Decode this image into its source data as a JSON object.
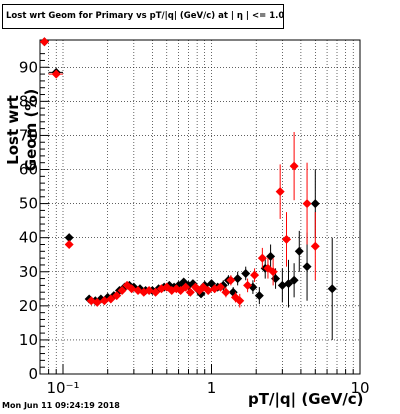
{
  "chart_data": {
    "type": "scatter",
    "title": "Lost wrt Geom for Primary vs pT/|q| (GeV/c) at | η | <= 1.0",
    "xlabel": "pT/|q| (GeV/c)",
    "ylabel": "Lost wrt Geom (%)",
    "footer": "Mon Jun 11 09:24:19 2018",
    "x_scale": "log",
    "xlim": [
      0.07,
      10
    ],
    "ylim": [
      0,
      98
    ],
    "grid": true,
    "x_tick_labels": [
      "10⁻¹",
      "1",
      "10"
    ],
    "y_ticks": [
      0,
      10,
      20,
      30,
      40,
      50,
      60,
      70,
      80,
      90
    ],
    "series": [
      {
        "color": "#000000",
        "marker": "diamond",
        "points": [
          [
            0.075,
            97.5,
            0.005,
            1.0
          ],
          [
            0.09,
            88.5,
            0.01,
            1.0
          ],
          [
            0.11,
            40.0,
            0.005,
            1.0
          ],
          [
            0.15,
            22.0,
            0.007,
            1.0
          ],
          [
            0.165,
            21.5,
            0.007,
            1.0
          ],
          [
            0.18,
            22.0,
            0.008,
            1.0
          ],
          [
            0.2,
            22.5,
            0.008,
            1.0
          ],
          [
            0.22,
            23.0,
            0.008,
            1.0
          ],
          [
            0.24,
            24.5,
            0.008,
            1.0
          ],
          [
            0.26,
            25.5,
            0.008,
            1.0
          ],
          [
            0.28,
            26.0,
            0.008,
            1.0
          ],
          [
            0.3,
            25.5,
            0.008,
            1.0
          ],
          [
            0.33,
            25.0,
            0.01,
            1.0
          ],
          [
            0.36,
            24.5,
            0.01,
            1.0
          ],
          [
            0.4,
            24.5,
            0.01,
            1.0
          ],
          [
            0.44,
            25.0,
            0.01,
            1.0
          ],
          [
            0.48,
            25.5,
            0.01,
            1.0
          ],
          [
            0.52,
            26.0,
            0.01,
            1.0
          ],
          [
            0.56,
            25.5,
            0.01,
            1.0
          ],
          [
            0.6,
            26.0,
            0.01,
            1.0
          ],
          [
            0.65,
            27.0,
            0.015,
            1.0
          ],
          [
            0.7,
            26.0,
            0.015,
            1.0
          ],
          [
            0.75,
            26.5,
            0.015,
            1.0
          ],
          [
            0.8,
            25.0,
            0.015,
            1.2
          ],
          [
            0.85,
            23.5,
            0.015,
            1.2
          ],
          [
            0.9,
            26.0,
            0.02,
            1.2
          ],
          [
            1.0,
            26.5,
            0.02,
            1.2
          ],
          [
            1.1,
            25.5,
            0.02,
            1.2
          ],
          [
            1.2,
            26.0,
            0.025,
            1.5
          ],
          [
            1.3,
            27.5,
            0.025,
            1.5
          ],
          [
            1.4,
            24.0,
            0.03,
            1.5
          ],
          [
            1.5,
            28.0,
            0.03,
            2.0
          ],
          [
            1.7,
            29.5,
            0.04,
            2.0
          ],
          [
            1.9,
            25.5,
            0.05,
            2.0
          ],
          [
            2.1,
            23.0,
            0.05,
            2.5
          ],
          [
            2.3,
            31.0,
            0.06,
            3.0
          ],
          [
            2.5,
            34.5,
            0.07,
            3.5
          ],
          [
            2.7,
            28.0,
            0.07,
            3.0
          ],
          [
            3.0,
            26.0,
            0.08,
            5.0
          ],
          [
            3.3,
            26.5,
            0.1,
            7.0
          ],
          [
            3.6,
            27.5,
            0.1,
            5.0
          ],
          [
            3.9,
            36.0,
            0.1,
            6.0
          ],
          [
            4.4,
            31.5,
            0.15,
            10.0
          ],
          [
            5.0,
            50.0,
            0.2,
            10.0
          ],
          [
            6.5,
            25.0,
            0.3,
            15.0
          ]
        ]
      },
      {
        "color": "#ff0000",
        "marker": "diamond",
        "points": [
          [
            0.075,
            97.5,
            0.005,
            1.0
          ],
          [
            0.09,
            88.0,
            0.01,
            1.0
          ],
          [
            0.11,
            38.0,
            0.005,
            1.0
          ],
          [
            0.155,
            21.5,
            0.007,
            1.0
          ],
          [
            0.17,
            21.0,
            0.007,
            1.0
          ],
          [
            0.19,
            21.5,
            0.008,
            1.0
          ],
          [
            0.21,
            22.0,
            0.008,
            1.0
          ],
          [
            0.23,
            23.0,
            0.008,
            1.0
          ],
          [
            0.25,
            24.5,
            0.008,
            1.0
          ],
          [
            0.27,
            26.0,
            0.008,
            1.0
          ],
          [
            0.29,
            25.0,
            0.008,
            1.0
          ],
          [
            0.32,
            24.5,
            0.01,
            1.0
          ],
          [
            0.35,
            24.0,
            0.01,
            1.0
          ],
          [
            0.38,
            24.5,
            0.01,
            1.0
          ],
          [
            0.42,
            24.0,
            0.01,
            1.0
          ],
          [
            0.46,
            25.0,
            0.01,
            1.0
          ],
          [
            0.5,
            25.5,
            0.01,
            1.0
          ],
          [
            0.54,
            24.5,
            0.01,
            1.0
          ],
          [
            0.58,
            25.0,
            0.01,
            1.0
          ],
          [
            0.62,
            24.5,
            0.01,
            1.0
          ],
          [
            0.67,
            25.5,
            0.015,
            1.0
          ],
          [
            0.72,
            24.0,
            0.015,
            1.0
          ],
          [
            0.78,
            25.5,
            0.015,
            1.2
          ],
          [
            0.83,
            24.5,
            0.015,
            1.2
          ],
          [
            0.88,
            25.5,
            0.015,
            1.2
          ],
          [
            0.95,
            24.5,
            0.02,
            1.2
          ],
          [
            1.05,
            25.0,
            0.02,
            1.2
          ],
          [
            1.15,
            25.5,
            0.02,
            1.2
          ],
          [
            1.25,
            24.0,
            0.025,
            1.5
          ],
          [
            1.35,
            27.5,
            0.025,
            1.5
          ],
          [
            1.45,
            22.5,
            0.03,
            1.5
          ],
          [
            1.55,
            21.5,
            0.03,
            2.0
          ],
          [
            1.75,
            26.0,
            0.04,
            2.0
          ],
          [
            1.95,
            29.0,
            0.05,
            2.0
          ],
          [
            2.2,
            34.0,
            0.05,
            3.0
          ],
          [
            2.4,
            31.0,
            0.06,
            3.0
          ],
          [
            2.6,
            30.0,
            0.07,
            4.0
          ],
          [
            2.9,
            53.5,
            0.08,
            8.0
          ],
          [
            3.2,
            39.5,
            0.1,
            8.0
          ],
          [
            3.6,
            61.0,
            0.1,
            10.0
          ],
          [
            4.4,
            50.0,
            0.15,
            12.0
          ],
          [
            5.0,
            37.5,
            0.2,
            10.0
          ]
        ]
      }
    ]
  }
}
